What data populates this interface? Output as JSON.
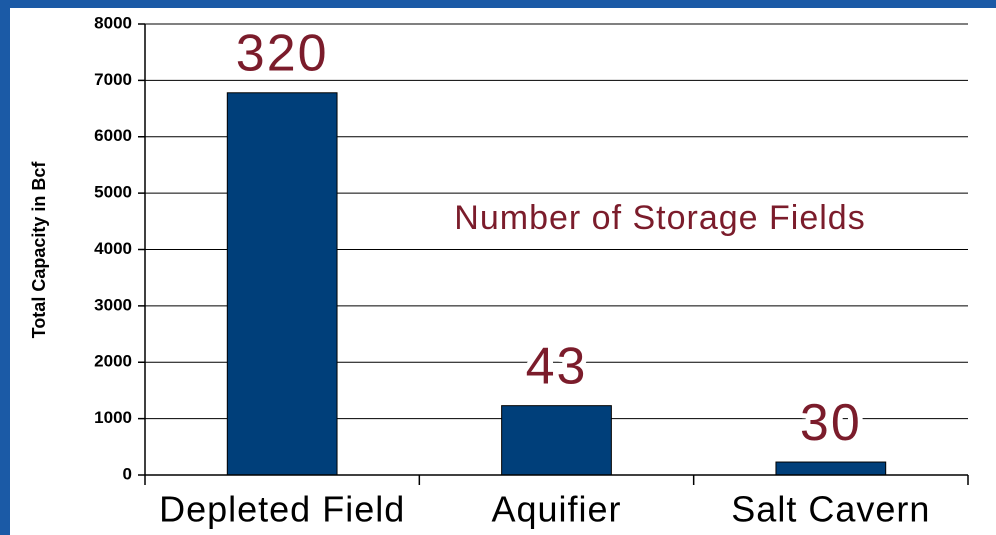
{
  "chart_data": {
    "type": "bar",
    "y_label": "Total Capacity in Bcf",
    "annotation": "Number of Storage Fields",
    "categories": [
      "Depleted Field",
      "Aquifier",
      "Salt Cavern"
    ],
    "values": [
      6780,
      1230,
      230
    ],
    "color": "#003f7a",
    "storage_fields": [
      320,
      43,
      30
    ],
    "ylim": [
      0,
      8000
    ],
    "yticks": [
      0,
      1000,
      2000,
      3000,
      4000,
      5000,
      6000,
      7000,
      8000
    ],
    "grid": true
  }
}
